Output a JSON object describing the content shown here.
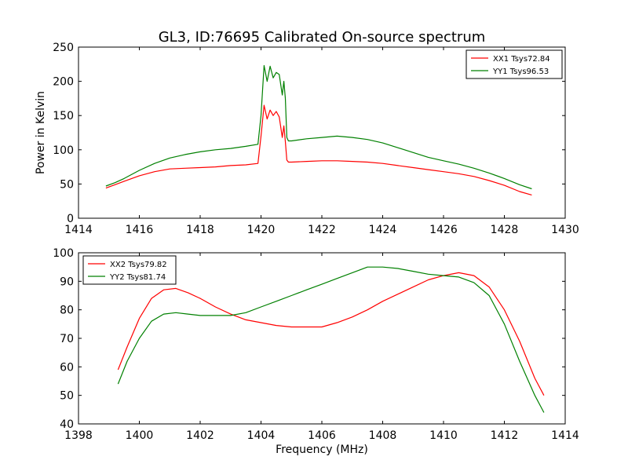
{
  "figure": {
    "title": "GL3, ID:76695 Calibrated On-source spectrum"
  },
  "chart_data": [
    {
      "type": "line",
      "title": "GL3, ID:76695 Calibrated On-source spectrum",
      "xlabel": "",
      "ylabel": "Power in Kelvin",
      "xlim": [
        1414,
        1430
      ],
      "ylim": [
        0,
        250
      ],
      "xticks": [
        1414,
        1416,
        1418,
        1420,
        1422,
        1424,
        1426,
        1428,
        1430
      ],
      "yticks": [
        0,
        50,
        100,
        150,
        200,
        250
      ],
      "grid": false,
      "legend_position": "top-right",
      "series": [
        {
          "name": "XX1 Tsys72.84",
          "color": "#ff0000",
          "x": [
            1414.9,
            1415.2,
            1415.5,
            1416.0,
            1416.5,
            1417.0,
            1417.5,
            1418.0,
            1418.5,
            1419.0,
            1419.5,
            1419.9,
            1420.0,
            1420.1,
            1420.2,
            1420.3,
            1420.4,
            1420.5,
            1420.6,
            1420.7,
            1420.75,
            1420.8,
            1420.85,
            1420.9,
            1421.0,
            1421.5,
            1422.0,
            1422.5,
            1423.0,
            1423.5,
            1424.0,
            1424.5,
            1425.0,
            1425.5,
            1426.0,
            1426.5,
            1427.0,
            1427.5,
            1428.0,
            1428.5,
            1428.9
          ],
          "y": [
            44,
            49,
            54,
            62,
            68,
            72,
            73,
            74,
            75,
            77,
            78,
            80,
            120,
            165,
            145,
            158,
            150,
            156,
            148,
            118,
            135,
            112,
            85,
            82,
            82,
            83,
            84,
            84,
            83,
            82,
            80,
            77,
            74,
            71,
            68,
            65,
            61,
            55,
            48,
            39,
            34
          ]
        },
        {
          "name": "YY1 Tsys96.53",
          "color": "#008000",
          "x": [
            1414.9,
            1415.2,
            1415.5,
            1416.0,
            1416.5,
            1417.0,
            1417.5,
            1418.0,
            1418.5,
            1419.0,
            1419.5,
            1419.9,
            1420.0,
            1420.1,
            1420.2,
            1420.3,
            1420.4,
            1420.5,
            1420.6,
            1420.7,
            1420.75,
            1420.8,
            1420.85,
            1420.9,
            1421.0,
            1421.5,
            1422.0,
            1422.5,
            1423.0,
            1423.5,
            1424.0,
            1424.5,
            1425.0,
            1425.5,
            1426.0,
            1426.5,
            1427.0,
            1427.5,
            1428.0,
            1428.5,
            1428.9
          ],
          "y": [
            47,
            52,
            58,
            70,
            80,
            88,
            93,
            97,
            100,
            102,
            105,
            108,
            150,
            223,
            200,
            222,
            205,
            213,
            210,
            180,
            200,
            175,
            118,
            113,
            113,
            116,
            118,
            120,
            118,
            115,
            110,
            103,
            96,
            89,
            84,
            79,
            73,
            66,
            58,
            49,
            43
          ]
        }
      ]
    },
    {
      "type": "line",
      "title": "",
      "xlabel": "Frequency (MHz)",
      "ylabel": "",
      "xlim": [
        1398,
        1414
      ],
      "ylim": [
        40,
        100
      ],
      "xticks": [
        1398,
        1400,
        1402,
        1404,
        1406,
        1408,
        1410,
        1412,
        1414
      ],
      "yticks": [
        40,
        50,
        60,
        70,
        80,
        90,
        100
      ],
      "grid": false,
      "legend_position": "top-left",
      "series": [
        {
          "name": "XX2 Tsys79.82",
          "color": "#ff0000",
          "x": [
            1399.3,
            1399.6,
            1400.0,
            1400.4,
            1400.8,
            1401.2,
            1401.6,
            1402.0,
            1402.5,
            1403.0,
            1403.5,
            1404.0,
            1404.5,
            1405.0,
            1405.5,
            1406.0,
            1406.5,
            1407.0,
            1407.5,
            1408.0,
            1408.5,
            1409.0,
            1409.5,
            1410.0,
            1410.5,
            1411.0,
            1411.5,
            1412.0,
            1412.5,
            1413.0,
            1413.3
          ],
          "y": [
            59,
            67,
            77,
            84,
            87,
            87.5,
            86,
            84,
            81,
            78.5,
            76.5,
            75.5,
            74.5,
            74,
            74,
            74,
            75.5,
            77.5,
            80,
            83,
            85.5,
            88,
            90.5,
            92,
            93,
            92,
            88,
            80,
            69,
            56,
            50
          ]
        },
        {
          "name": "YY2 Tsys81.74",
          "color": "#008000",
          "x": [
            1399.3,
            1399.6,
            1400.0,
            1400.4,
            1400.8,
            1401.2,
            1401.6,
            1402.0,
            1402.5,
            1403.0,
            1403.5,
            1404.0,
            1404.5,
            1405.0,
            1405.5,
            1406.0,
            1406.5,
            1407.0,
            1407.5,
            1408.0,
            1408.5,
            1409.0,
            1409.5,
            1410.0,
            1410.5,
            1411.0,
            1411.5,
            1412.0,
            1412.5,
            1413.0,
            1413.3
          ],
          "y": [
            54,
            62,
            70,
            76,
            78.5,
            79,
            78.5,
            78,
            78,
            78,
            79,
            81,
            83,
            85,
            87,
            89,
            91,
            93,
            95,
            95,
            94.5,
            93.5,
            92.5,
            92,
            91.5,
            89.5,
            85,
            75,
            62,
            50,
            44
          ]
        }
      ]
    }
  ]
}
